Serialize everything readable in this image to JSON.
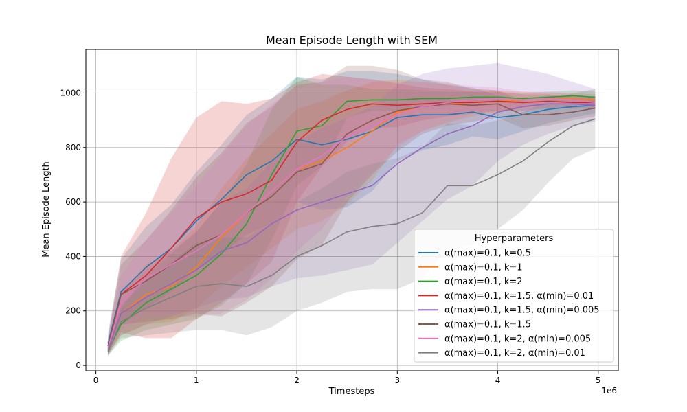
{
  "chart_data": {
    "type": "line",
    "title": "Mean Episode Length with SEM",
    "xlabel": "Timesteps",
    "ylabel": "Mean Episode Length",
    "x_offset_label": "1e6",
    "xlim": [
      -0.1,
      5.2
    ],
    "ylim": [
      -20,
      1160
    ],
    "xticks": [
      0,
      1,
      2,
      3,
      4,
      5
    ],
    "xtick_labels": [
      "0",
      "1",
      "2",
      "3",
      "4",
      "5"
    ],
    "yticks": [
      0,
      200,
      400,
      600,
      800,
      1000
    ],
    "ytick_labels": [
      "0",
      "200",
      "400",
      "600",
      "800",
      "1000"
    ],
    "grid": true,
    "legend": {
      "title": "Hyperparameters",
      "position": "lower-right"
    },
    "x": [
      0.12,
      0.25,
      0.5,
      0.75,
      1.0,
      1.25,
      1.5,
      1.75,
      2.0,
      2.25,
      2.5,
      2.75,
      3.0,
      3.25,
      3.5,
      3.75,
      4.0,
      4.25,
      4.5,
      4.75,
      4.97
    ],
    "series": [
      {
        "name": "α(max)=0.1, k=0.5",
        "color": "#1f77b4",
        "values": [
          80,
          270,
          360,
          430,
          530,
          610,
          700,
          750,
          830,
          810,
          830,
          860,
          910,
          920,
          920,
          930,
          910,
          920,
          940,
          950,
          955
        ],
        "sem": [
          40,
          120,
          150,
          160,
          180,
          200,
          220,
          230,
          230,
          240,
          250,
          220,
          160,
          130,
          110,
          90,
          80,
          60,
          50,
          40,
          30
        ]
      },
      {
        "name": "α(max)=0.1, k=1",
        "color": "#ff7f0e",
        "values": [
          60,
          190,
          260,
          290,
          360,
          470,
          560,
          640,
          720,
          750,
          800,
          860,
          930,
          950,
          960,
          965,
          970,
          975,
          980,
          980,
          975
        ],
        "sem": [
          20,
          80,
          110,
          130,
          150,
          180,
          200,
          210,
          220,
          220,
          210,
          180,
          120,
          90,
          70,
          50,
          40,
          30,
          20,
          20,
          20
        ]
      },
      {
        "name": "α(max)=0.1, k=2",
        "color": "#2ca02c",
        "values": [
          55,
          150,
          230,
          280,
          330,
          410,
          520,
          700,
          860,
          880,
          970,
          975,
          975,
          980,
          980,
          985,
          985,
          980,
          985,
          990,
          985
        ],
        "sem": [
          20,
          60,
          100,
          130,
          160,
          190,
          220,
          240,
          200,
          150,
          60,
          40,
          40,
          30,
          25,
          20,
          20,
          20,
          20,
          20,
          20
        ]
      },
      {
        "name": "α(max)=0.1, k=1.5, α(min)=0.01",
        "color": "#d62728",
        "values": [
          70,
          260,
          330,
          430,
          540,
          600,
          630,
          680,
          820,
          900,
          940,
          960,
          955,
          960,
          965,
          965,
          970,
          965,
          970,
          965,
          965
        ],
        "sem": [
          30,
          140,
          230,
          330,
          370,
          370,
          330,
          300,
          220,
          170,
          120,
          90,
          80,
          60,
          50,
          40,
          35,
          30,
          25,
          20,
          20
        ]
      },
      {
        "name": "α(max)=0.1, k=1.5, α(min)=0.005",
        "color": "#9467bd",
        "values": [
          60,
          190,
          250,
          300,
          350,
          420,
          450,
          520,
          570,
          600,
          630,
          660,
          740,
          800,
          850,
          880,
          930,
          950,
          960,
          960,
          955
        ],
        "sem": [
          20,
          80,
          100,
          120,
          140,
          180,
          200,
          230,
          250,
          270,
          280,
          290,
          290,
          270,
          240,
          220,
          180,
          140,
          110,
          80,
          60
        ]
      },
      {
        "name": "α(max)=0.1, k=1.5",
        "color": "#8c564b",
        "values": [
          70,
          260,
          310,
          370,
          440,
          480,
          560,
          620,
          710,
          740,
          850,
          900,
          935,
          950,
          960,
          955,
          960,
          920,
          920,
          930,
          945
        ],
        "sem": [
          30,
          110,
          150,
          200,
          250,
          300,
          330,
          330,
          320,
          300,
          250,
          200,
          150,
          100,
          80,
          60,
          50,
          50,
          40,
          30,
          30
        ]
      },
      {
        "name": "α(max)=0.1, k=2, α(min)=0.005",
        "color": "#e377c2",
        "values": [
          65,
          230,
          320,
          370,
          420,
          480,
          560,
          640,
          720,
          770,
          840,
          880,
          920,
          950,
          965,
          975,
          980,
          975,
          980,
          975,
          965
        ],
        "sem": [
          25,
          100,
          140,
          190,
          240,
          290,
          320,
          320,
          300,
          270,
          220,
          170,
          120,
          90,
          70,
          50,
          40,
          30,
          25,
          20,
          20
        ]
      },
      {
        "name": "α(max)=0.1, k=2, α(min)=0.01",
        "color": "#7f7f7f",
        "values": [
          50,
          160,
          210,
          250,
          290,
          300,
          290,
          330,
          400,
          440,
          490,
          510,
          520,
          560,
          660,
          660,
          700,
          750,
          820,
          880,
          905
        ],
        "sem": [
          15,
          60,
          100,
          130,
          160,
          170,
          180,
          190,
          200,
          210,
          220,
          230,
          240,
          240,
          230,
          220,
          200,
          180,
          150,
          120,
          110
        ]
      }
    ]
  }
}
